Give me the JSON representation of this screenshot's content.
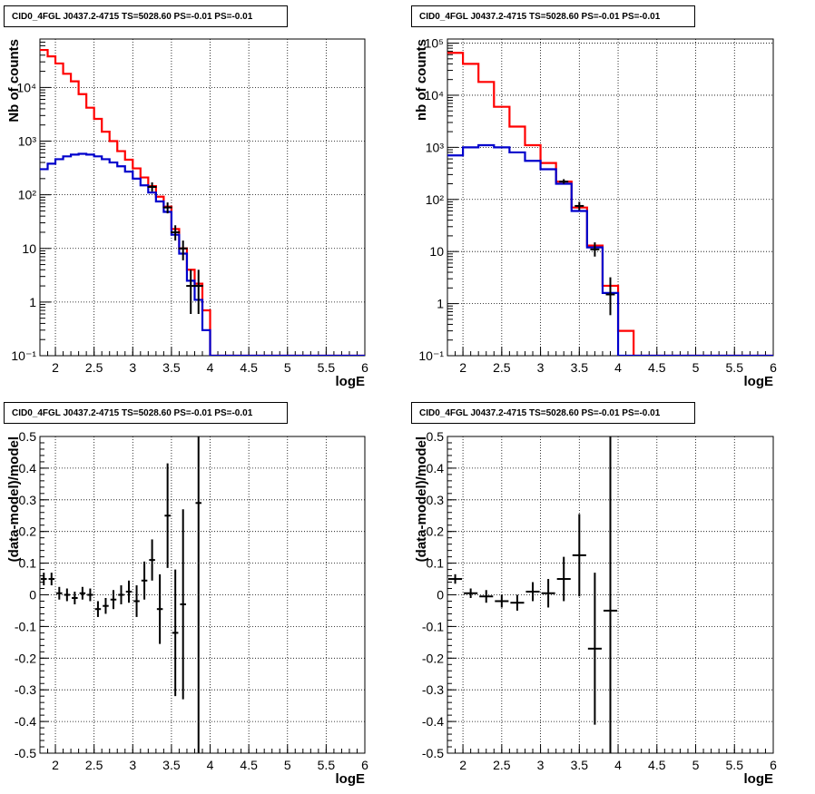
{
  "chart_data": [
    {
      "type": "step",
      "title": "CID0_4FGL J0437.2-4715 TS=5028.60 PS=-0.01 PS=-0.01",
      "xlabel": "logE",
      "ylabel": "Nb of counts",
      "xlim": [
        1.8,
        6
      ],
      "ylim": [
        0.1,
        80000
      ],
      "yscale": "log",
      "grid": true,
      "x_ticks": [
        "2",
        "2.5",
        "3",
        "3.5",
        "4",
        "4.5",
        "5",
        "5.5",
        "6"
      ],
      "y_ticks": [
        "10⁻¹",
        "1",
        "10",
        "10²",
        "10³",
        "10⁴"
      ],
      "bin_edges": [
        1.8,
        1.9,
        2.0,
        2.1,
        2.2,
        2.3,
        2.4,
        2.5,
        2.6,
        2.7,
        2.8,
        2.9,
        3.0,
        3.1,
        3.2,
        3.3,
        3.4,
        3.5,
        3.6,
        3.7,
        3.8,
        3.9,
        4.0,
        4.1,
        4.2,
        4.3,
        4.4,
        4.5,
        4.6,
        4.7,
        4.8,
        4.9,
        5.0,
        5.1,
        5.2,
        5.3,
        5.4,
        5.5,
        5.6,
        5.7,
        5.8,
        5.9,
        6.0
      ],
      "series": [
        {
          "color": "#ff0000",
          "values": [
            50000,
            38000,
            28000,
            18000,
            13000,
            7500,
            4200,
            2600,
            1500,
            1000,
            650,
            450,
            310,
            210,
            145,
            92,
            60,
            23,
            10,
            4,
            2.2,
            0.7,
            0.1,
            0.1,
            0.1,
            0.1,
            0.1,
            0.1,
            0.1,
            0.1,
            0.1,
            0.1,
            0.1,
            0.1,
            0.1,
            0.1,
            0.1,
            0.1,
            0.1,
            0.1,
            0.1,
            0.1
          ]
        },
        {
          "color": "#0000cc",
          "values": [
            300,
            380,
            460,
            520,
            560,
            580,
            560,
            520,
            460,
            400,
            340,
            270,
            200,
            150,
            110,
            75,
            48,
            18,
            8,
            2.5,
            1.1,
            0.3,
            0.1,
            0.1,
            0.1,
            0.1,
            0.1,
            0.1,
            0.1,
            0.1,
            0.1,
            0.1,
            0.1,
            0.1,
            0.1,
            0.1,
            0.1,
            0.1,
            0.1,
            0.1,
            0.1,
            0.1
          ]
        }
      ],
      "points": [
        {
          "x": 3.25,
          "y": 140,
          "lo": 115,
          "hi": 170
        },
        {
          "x": 3.45,
          "y": 58,
          "lo": 45,
          "hi": 72
        },
        {
          "x": 3.55,
          "y": 20,
          "lo": 14,
          "hi": 27
        },
        {
          "x": 3.65,
          "y": 10,
          "lo": 6,
          "hi": 14
        },
        {
          "x": 3.75,
          "y": 2,
          "lo": 0.6,
          "hi": 4
        },
        {
          "x": 3.85,
          "y": 2,
          "lo": 0.6,
          "hi": 4
        }
      ]
    },
    {
      "type": "step",
      "title": "CID0_4FGL J0437.2-4715 TS=5028.60 PS=-0.01 PS=-0.01",
      "xlabel": "logE",
      "ylabel": "nb of counts",
      "xlim": [
        1.8,
        6
      ],
      "ylim": [
        0.1,
        120000
      ],
      "yscale": "log",
      "grid": true,
      "x_ticks": [
        "2",
        "2.5",
        "3",
        "3.5",
        "4",
        "4.5",
        "5",
        "5.5",
        "6"
      ],
      "y_ticks": [
        "10⁻¹",
        "1",
        "10",
        "10²",
        "10³",
        "10⁴",
        "10⁵"
      ],
      "bin_edges": [
        1.8,
        2.0,
        2.2,
        2.4,
        2.6,
        2.8,
        3.0,
        3.2,
        3.4,
        3.6,
        3.8,
        4.0,
        4.2,
        4.4,
        4.6,
        4.8,
        5.0,
        5.2,
        5.4,
        5.6,
        5.8,
        6.0
      ],
      "series": [
        {
          "color": "#ff0000",
          "values": [
            65000,
            40000,
            18000,
            6000,
            2500,
            1100,
            500,
            220,
            70,
            13,
            2.2,
            0.3,
            0.1,
            0.1,
            0.1,
            0.1,
            0.1,
            0.1,
            0.1,
            0.1,
            0.1
          ]
        },
        {
          "color": "#0000cc",
          "values": [
            700,
            1000,
            1100,
            1000,
            800,
            550,
            380,
            200,
            60,
            12,
            1.6,
            0.1,
            0.1,
            0.1,
            0.1,
            0.1,
            0.1,
            0.1,
            0.1,
            0.1,
            0.1
          ]
        }
      ],
      "points": [
        {
          "x": 3.3,
          "y": 220,
          "lo": 200,
          "hi": 245
        },
        {
          "x": 3.5,
          "y": 75,
          "lo": 62,
          "hi": 90
        },
        {
          "x": 3.7,
          "y": 11,
          "lo": 8,
          "hi": 15
        },
        {
          "x": 3.9,
          "y": 1.5,
          "lo": 0.6,
          "hi": 3.2
        }
      ]
    },
    {
      "type": "errorbar",
      "title": "CID0_4FGL J0437.2-4715 TS=5028.60 PS=-0.01 PS=-0.01",
      "xlabel": "logE",
      "ylabel": "(data-model)/model",
      "xlim": [
        1.8,
        6
      ],
      "ylim": [
        -0.5,
        0.5
      ],
      "grid": true,
      "x_ticks": [
        "2",
        "2.5",
        "3",
        "3.5",
        "4",
        "4.5",
        "5",
        "5.5",
        "6"
      ],
      "y_ticks": [
        "-0.5",
        "-0.4",
        "-0.3",
        "-0.2",
        "-0.1",
        "0",
        "0.1",
        "0.2",
        "0.3",
        "0.4",
        "0.5"
      ],
      "bin_width": 0.1,
      "points": [
        {
          "x": 1.85,
          "y": 0.05,
          "err": 0.02
        },
        {
          "x": 1.95,
          "y": 0.05,
          "err": 0.02
        },
        {
          "x": 2.05,
          "y": 0.005,
          "err": 0.02
        },
        {
          "x": 2.15,
          "y": 0.0,
          "err": 0.02
        },
        {
          "x": 2.25,
          "y": -0.01,
          "err": 0.02
        },
        {
          "x": 2.35,
          "y": 0.005,
          "err": 0.02
        },
        {
          "x": 2.45,
          "y": 0.0,
          "err": 0.02
        },
        {
          "x": 2.55,
          "y": -0.045,
          "err": 0.025
        },
        {
          "x": 2.65,
          "y": -0.035,
          "err": 0.025
        },
        {
          "x": 2.75,
          "y": -0.015,
          "err": 0.03
        },
        {
          "x": 2.85,
          "y": 0.0,
          "err": 0.03
        },
        {
          "x": 2.95,
          "y": 0.01,
          "err": 0.035
        },
        {
          "x": 3.05,
          "y": -0.02,
          "err": 0.05
        },
        {
          "x": 3.15,
          "y": 0.045,
          "err": 0.06
        },
        {
          "x": 3.25,
          "y": 0.11,
          "err": 0.065
        },
        {
          "x": 3.35,
          "y": -0.045,
          "err": 0.11
        },
        {
          "x": 3.45,
          "y": 0.25,
          "err": 0.165
        },
        {
          "x": 3.55,
          "y": -0.12,
          "err": 0.2
        },
        {
          "x": 3.65,
          "y": -0.03,
          "err": 0.3
        },
        {
          "x": 3.85,
          "y": 0.29,
          "err": 0.8
        }
      ]
    },
    {
      "type": "errorbar",
      "title": "CID0_4FGL J0437.2-4715 TS=5028.60 PS=-0.01 PS=-0.01",
      "xlabel": "logE",
      "ylabel": "(data-model)/model",
      "xlim": [
        1.8,
        6
      ],
      "ylim": [
        -0.5,
        0.5
      ],
      "grid": true,
      "x_ticks": [
        "2",
        "2.5",
        "3",
        "3.5",
        "4",
        "4.5",
        "5",
        "5.5",
        "6"
      ],
      "y_ticks": [
        "-0.5",
        "-0.4",
        "-0.3",
        "-0.2",
        "-0.1",
        "0",
        "0.1",
        "0.2",
        "0.3",
        "0.4",
        "0.5"
      ],
      "bin_width": 0.2,
      "points": [
        {
          "x": 1.9,
          "y": 0.05,
          "err": 0.015
        },
        {
          "x": 2.1,
          "y": 0.005,
          "err": 0.015
        },
        {
          "x": 2.3,
          "y": -0.005,
          "err": 0.02
        },
        {
          "x": 2.5,
          "y": -0.02,
          "err": 0.02
        },
        {
          "x": 2.7,
          "y": -0.025,
          "err": 0.025
        },
        {
          "x": 2.9,
          "y": 0.01,
          "err": 0.03
        },
        {
          "x": 3.1,
          "y": 0.005,
          "err": 0.045
        },
        {
          "x": 3.3,
          "y": 0.05,
          "err": 0.07
        },
        {
          "x": 3.5,
          "y": 0.125,
          "err": 0.13
        },
        {
          "x": 3.7,
          "y": -0.17,
          "err": 0.24
        },
        {
          "x": 3.9,
          "y": -0.05,
          "err": 0.55
        }
      ]
    }
  ]
}
